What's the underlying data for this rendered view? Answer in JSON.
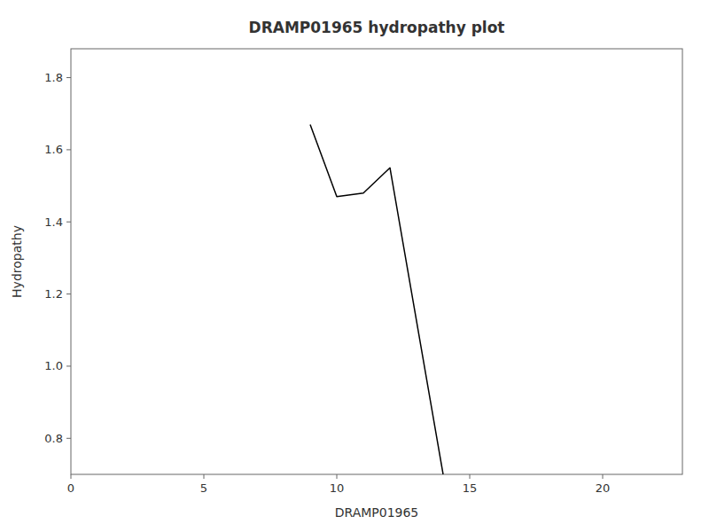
{
  "chart_data": {
    "type": "line",
    "title": "DRAMP01965 hydropathy plot",
    "xlabel": "DRAMP01965",
    "ylabel": "Hydropathy",
    "x": [
      9,
      10,
      11,
      12,
      14
    ],
    "values": [
      1.67,
      1.47,
      1.48,
      1.55,
      0.7
    ],
    "color": "black",
    "xlim": [
      0,
      23
    ],
    "ylim": [
      0.7,
      1.88
    ],
    "xticks": [
      0,
      5,
      10,
      15,
      20
    ],
    "yticks": [
      0.8,
      {
        "value": 1.0,
        "label": "1.0"
      },
      1.2,
      1.4,
      1.6,
      1.8
    ],
    "grid": false
  }
}
